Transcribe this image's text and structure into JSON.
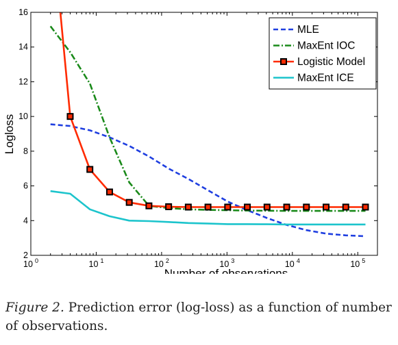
{
  "chart_data": {
    "type": "line",
    "xlabel": "Number of observations",
    "ylabel": "Logloss",
    "xscale": "log",
    "xlim": [
      1,
      200000
    ],
    "ylim": [
      2,
      16
    ],
    "x_ticks": [
      1,
      10,
      100,
      1000,
      10000,
      100000
    ],
    "x_tick_labels": [
      {
        "base": "10",
        "exp": "0"
      },
      {
        "base": "10",
        "exp": "1"
      },
      {
        "base": "10",
        "exp": "2"
      },
      {
        "base": "10",
        "exp": "3"
      },
      {
        "base": "10",
        "exp": "4"
      },
      {
        "base": "10",
        "exp": "5"
      }
    ],
    "y_ticks": [
      2,
      4,
      6,
      8,
      10,
      12,
      14,
      16
    ],
    "y_tick_labels": [
      "2",
      "4",
      "6",
      "8",
      "10",
      "12",
      "14",
      "16"
    ],
    "grid": false,
    "legend_position": "top-right",
    "series": [
      {
        "name": "MLE",
        "color": "#1f3fe0",
        "style": "dashed",
        "marker": "none",
        "x": [
          2,
          4,
          8,
          16,
          32,
          64,
          128,
          256,
          512,
          1024,
          2048,
          4096,
          8192,
          16384,
          32768,
          65536,
          131072
        ],
        "y": [
          9.55,
          9.45,
          9.2,
          8.8,
          8.3,
          7.7,
          7.0,
          6.4,
          5.75,
          5.1,
          4.6,
          4.15,
          3.75,
          3.45,
          3.25,
          3.15,
          3.1
        ]
      },
      {
        "name": "MaxEnt IOC",
        "color": "#1a8a1a",
        "style": "dashdot",
        "marker": "none",
        "x": [
          2,
          4,
          8,
          16,
          32,
          64,
          128,
          256,
          512,
          1024,
          2048,
          4096,
          8192,
          16384,
          32768,
          65536,
          131072
        ],
        "y": [
          15.2,
          13.7,
          11.9,
          8.8,
          6.2,
          4.85,
          4.72,
          4.65,
          4.62,
          4.6,
          4.58,
          4.57,
          4.56,
          4.56,
          4.56,
          4.56,
          4.56
        ]
      },
      {
        "name": "Logistic Model",
        "color": "#ff2a00",
        "style": "solid",
        "marker": "square",
        "x": [
          2,
          4,
          8,
          16,
          32,
          64,
          128,
          256,
          512,
          1024,
          2048,
          4096,
          8192,
          16384,
          32768,
          65536,
          131072
        ],
        "y": [
          22.0,
          10.0,
          6.95,
          5.65,
          5.05,
          4.85,
          4.8,
          4.78,
          4.78,
          4.78,
          4.78,
          4.78,
          4.78,
          4.78,
          4.78,
          4.78,
          4.78
        ]
      },
      {
        "name": "MaxEnt ICE",
        "color": "#1cc4cc",
        "style": "solid",
        "marker": "none",
        "x": [
          2,
          4,
          8,
          16,
          32,
          64,
          128,
          256,
          512,
          1024,
          2048,
          4096,
          8192,
          16384,
          32768,
          65536,
          131072
        ],
        "y": [
          5.7,
          5.55,
          4.65,
          4.25,
          4.0,
          3.97,
          3.92,
          3.86,
          3.83,
          3.8,
          3.8,
          3.79,
          3.78,
          3.78,
          3.78,
          3.78,
          3.78
        ]
      }
    ]
  },
  "caption": {
    "label": "Figure 2.",
    "text": " Prediction error (log-loss) as a function of number of observations."
  }
}
